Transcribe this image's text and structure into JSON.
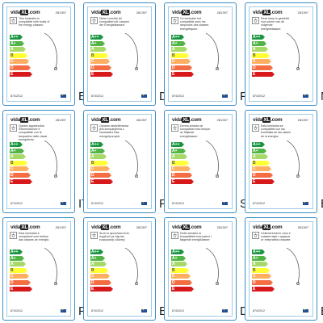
{
  "brand": {
    "prefix": "vida",
    "mark": "XL",
    "suffix": ".com"
  },
  "product_code": "281397",
  "regulation": "874/2012",
  "energy_classes": [
    {
      "letter": "A++",
      "color": "#1a9641"
    },
    {
      "letter": "A+",
      "color": "#52b447"
    },
    {
      "letter": "A",
      "color": "#a6d96a"
    },
    {
      "letter": "B",
      "color": "#ffff33"
    },
    {
      "letter": "C",
      "color": "#fdae61"
    },
    {
      "letter": "D",
      "color": "#f46d43"
    },
    {
      "letter": "E",
      "color": "#d7191c"
    }
  ],
  "labels": [
    {
      "lang": "EN",
      "text": "This luminaire is compatible with bulbs of the energy classes:"
    },
    {
      "lang": "DE",
      "text": "Diese Leuchte ist kompatibel mit Lampen der Energieklassen:"
    },
    {
      "lang": "FR",
      "text": "Ce luminaire est compatible avec les ampoules des classes énergétiques:"
    },
    {
      "lang": "NL",
      "text": "Deze lamp is geschikt voor peren van de volgende energieklassen:"
    },
    {
      "lang": "IT",
      "text": "Questo apparecchio d'illuminazione è compatibile con le lampadine delle classi energetiche:"
    },
    {
      "lang": "PL",
      "text": "Oprawa oświetleniowa jest kompatybilna z żarówkami klas energetycznych:"
    },
    {
      "lang": "SE",
      "text": "Denna armatur är kompatibel med lampor av följande energiklasser:"
    },
    {
      "lang": "ES",
      "text": "Esta luminaria es compatible con las bombillas de las clases de la energía:"
    },
    {
      "lang": "PT",
      "text": "Esta luminária é compatível com bulbos das classes de energia:"
    },
    {
      "lang": "EL",
      "text": "Αυτό το φωτιστικό είναι συμβατό με λάμπες ενεργειακής κλάσης:"
    },
    {
      "lang": "DA",
      "text": "Dette armatur er kompatibelt med pærer i følgende energiklasser:"
    },
    {
      "lang": "BG",
      "text": "Осветителното тяло е съвместимо с крушки от енергийни класове:"
    }
  ]
}
